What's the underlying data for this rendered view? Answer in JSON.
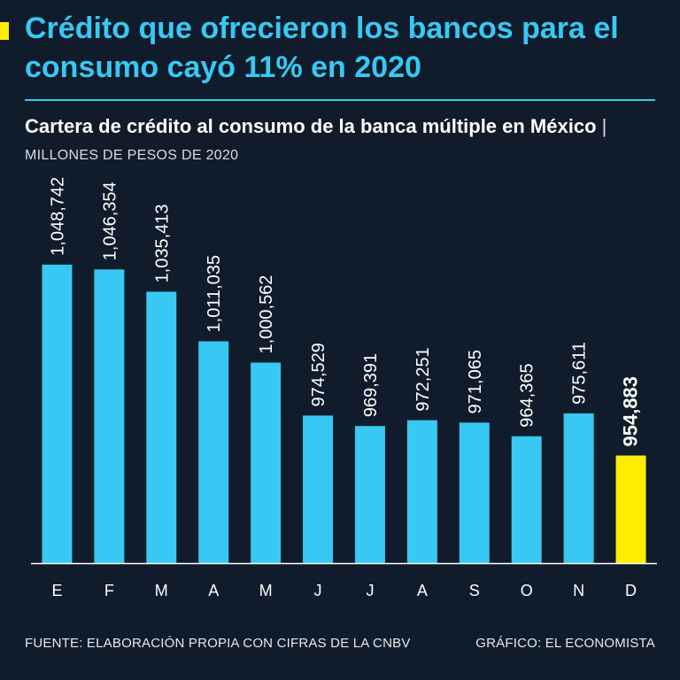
{
  "header": {
    "title": "Crédito que ofrecieron los bancos para el consumo cayó 11% en 2020"
  },
  "chart_data": {
    "type": "bar",
    "title": "Cartera de crédito al consumo de la banca múltiple en México",
    "separator": "|",
    "unit": "MILLONES DE PESOS DE 2020",
    "categories": [
      "E",
      "F",
      "M",
      "A",
      "M",
      "J",
      "J",
      "A",
      "S",
      "O",
      "N",
      "D"
    ],
    "values": [
      1048742,
      1046354,
      1035413,
      1011035,
      1000562,
      974529,
      969391,
      972251,
      971065,
      964365,
      975611,
      954883
    ],
    "value_labels": [
      "1,048,742",
      "1,046,354",
      "1,035,413",
      "1,011,035",
      "1,000,562",
      "974,529",
      "969,391",
      "972,251",
      "971,065",
      "964,365",
      "975,611",
      "954,883"
    ],
    "highlight_index": 11,
    "ylim": [
      902000,
      1070000
    ],
    "xlabel": "",
    "ylabel": "",
    "colors": {
      "bar": "#38c8f4",
      "highlight": "#ffee00",
      "axis": "#ffffff",
      "text": "#ffffff"
    }
  },
  "footer": {
    "source": "FUENTE: ELABORACIÓN PROPIA CON CIFRAS DE LA CNBV",
    "credit": "GRÁFICO: EL ECONOMISTA"
  }
}
